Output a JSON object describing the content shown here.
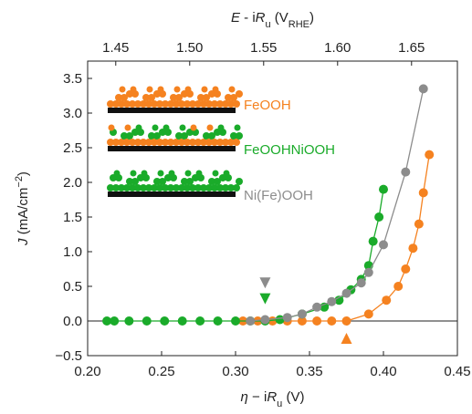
{
  "chart_data": {
    "type": "scatter",
    "xlabel": [
      {
        "text": "η",
        "style": "italic"
      },
      {
        "text": " − i",
        "style": "normal"
      },
      {
        "text": "R",
        "style": "italic"
      },
      {
        "text": "u",
        "style": "sub"
      },
      {
        "text": " (V)",
        "style": "normal"
      }
    ],
    "ylabel": [
      {
        "text": "J",
        "style": "italic"
      },
      {
        "text": " (mA/cm",
        "style": "normal"
      },
      {
        "text": "−2",
        "style": "super"
      },
      {
        "text": ")",
        "style": "normal"
      }
    ],
    "x2label": [
      {
        "text": "E",
        "style": "italic"
      },
      {
        "text": " - i",
        "style": "normal"
      },
      {
        "text": "R",
        "style": "italic"
      },
      {
        "text": "u",
        "style": "sub"
      },
      {
        "text": " (V",
        "style": "normal"
      },
      {
        "text": "RHE",
        "style": "sub"
      },
      {
        "text": ")",
        "style": "normal"
      }
    ],
    "xlim": [
      0.2,
      0.45
    ],
    "xticks": [
      {
        "value": 0.2,
        "label": "0.20"
      },
      0.25,
      {
        "value": 0.3,
        "label": "0.30"
      },
      0.35,
      {
        "value": 0.4,
        "label": "0.40"
      },
      0.45
    ],
    "x2lim": [
      1.431,
      1.681
    ],
    "x2ticks": [
      1.45,
      {
        "value": 1.5,
        "label": "1.50"
      },
      1.55,
      {
        "value": 1.6,
        "label": "1.60"
      },
      1.65
    ],
    "ylim": [
      -0.5,
      3.75
    ],
    "yticks": [
      {
        "value": -0.5,
        "label": "−0.5"
      },
      {
        "value": 0,
        "label": "0.0"
      },
      0.5,
      {
        "value": 1,
        "label": "1.0"
      },
      1.5,
      {
        "value": 2,
        "label": "2.0"
      },
      2.5,
      {
        "value": 3,
        "label": "3.0"
      },
      3.5
    ],
    "hline": 0,
    "series": [
      {
        "name": "FeOOH",
        "color": "#f58220",
        "x": [
          0.305,
          0.315,
          0.325,
          0.335,
          0.345,
          0.355,
          0.365,
          0.375,
          0.39,
          0.402,
          0.41,
          0.415,
          0.42,
          0.424,
          0.427,
          0.431
        ],
        "values": [
          0,
          0,
          0,
          0,
          0,
          0,
          0,
          0,
          0.1,
          0.3,
          0.5,
          0.75,
          1.05,
          1.4,
          1.85,
          2.4
        ]
      },
      {
        "name": "FeOOHNiOOH",
        "color": "#1aab2a",
        "x": [
          0.213,
          0.218,
          0.228,
          0.24,
          0.252,
          0.264,
          0.276,
          0.288,
          0.3,
          0.31,
          0.32,
          0.33,
          0.345,
          0.36,
          0.37,
          0.378,
          0.385,
          0.39,
          0.393,
          0.397,
          0.4
        ],
        "values": [
          0,
          0,
          0,
          0,
          0,
          0,
          0,
          0,
          0,
          0,
          0,
          0.02,
          0.1,
          0.2,
          0.3,
          0.45,
          0.6,
          0.8,
          1.15,
          1.5,
          1.9
        ]
      },
      {
        "name": "Ni(Fe)OOH",
        "color": "#8c8c8c",
        "x": [
          0.31,
          0.32,
          0.335,
          0.345,
          0.355,
          0.365,
          0.375,
          0.385,
          0.39,
          0.4,
          0.415,
          0.427
        ],
        "values": [
          0,
          0.02,
          0.05,
          0.1,
          0.2,
          0.28,
          0.4,
          0.55,
          0.7,
          1.1,
          2.15,
          3.35
        ]
      }
    ],
    "markers": [
      {
        "x": 0.32,
        "y": 0.55,
        "color": "#8c8c8c",
        "shape": "down"
      },
      {
        "x": 0.32,
        "y": 0.32,
        "color": "#1aab2a",
        "shape": "down"
      },
      {
        "x": 0.375,
        "y": -0.25,
        "color": "#f58220",
        "shape": "up"
      }
    ]
  }
}
